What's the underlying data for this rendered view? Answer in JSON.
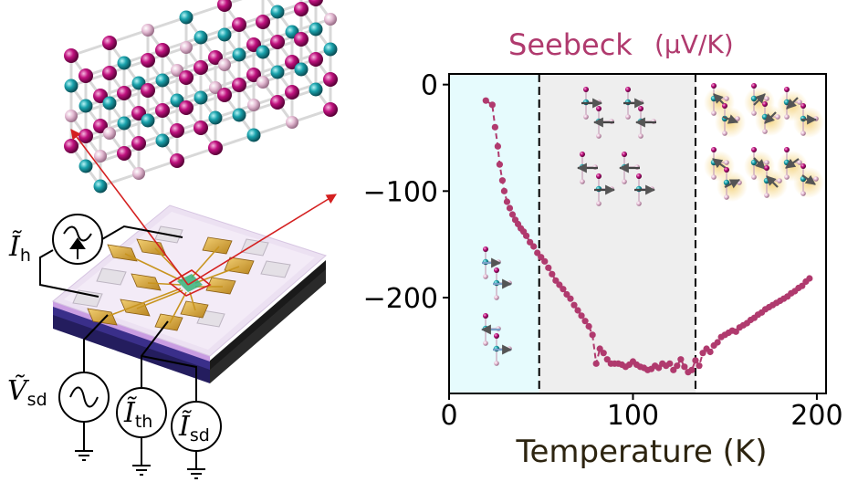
{
  "figure": {
    "lattice_illustration": "crystal-lattice",
    "device_illustration": "device-chip",
    "labels": {
      "heater_current_label": "Ĩ",
      "heater_current_sub": "h",
      "sd_voltage_label": "Ṽ",
      "sd_voltage_sub": "sd",
      "thermo_current_label": "Ĩ",
      "thermo_current_sub": "th",
      "sd_current_label": "Ĩ",
      "sd_current_sub": "sd"
    },
    "icons": [
      "ac-source-icon",
      "current-arrow-icon",
      "ground-icon",
      "spin-configuration-icon"
    ],
    "colors": {
      "data": "#b03a6e",
      "region_low": "#e6fbfd",
      "region_mid": "#eeeeee",
      "pink_atom": "#c0127f",
      "teal_atom": "#1aa3ad",
      "light_atom": "#e3b9d2",
      "gold_contact": "#d9a53b",
      "substrate_top": "#e7d8ef",
      "substrate_side": "#2b2467",
      "red_arrow": "#d42020"
    }
  },
  "chart_data": {
    "type": "scatter",
    "title": "Seebeck",
    "title_unit": "(μV/K)",
    "xlabel": "Temperature (K)",
    "ylabel": "",
    "xlim": [
      0,
      205
    ],
    "ylim": [
      -290,
      10
    ],
    "xticks": [
      0,
      100,
      200
    ],
    "yticks": [
      0,
      -100,
      -200
    ],
    "xtick_labels": [
      "0",
      "100",
      "200"
    ],
    "ytick_labels": [
      "0",
      "−100",
      "−200"
    ],
    "grid": false,
    "markers_joined_by_dashed_line": true,
    "vertical_dividers_K": [
      49,
      134
    ],
    "regions": [
      {
        "from": 0,
        "to": 49,
        "fill": "#e6fbfd"
      },
      {
        "from": 49,
        "to": 134,
        "fill": "#eeeeee"
      }
    ],
    "series": [
      {
        "color": "#b03a6e",
        "x": [
          20,
          23.5,
          25,
          26.5,
          27.5,
          29,
          30,
          31.5,
          33,
          34.5,
          36,
          37.5,
          39,
          40.5,
          42,
          44,
          46,
          48,
          50,
          52,
          54,
          56,
          58,
          60,
          62,
          64,
          66,
          68,
          70,
          72,
          74,
          76,
          78,
          80,
          82,
          84,
          86,
          88,
          90,
          92,
          94,
          96,
          98,
          100,
          102,
          104,
          106,
          108,
          110,
          112,
          114,
          116,
          118,
          120,
          122,
          124,
          126,
          128,
          130,
          132,
          134,
          136,
          138,
          140,
          142,
          144,
          146,
          148,
          150,
          152,
          154,
          156,
          158,
          160,
          162,
          164,
          166,
          168,
          170,
          172,
          174,
          176,
          178,
          180,
          182,
          184,
          186,
          188,
          190,
          192,
          194,
          196
        ],
        "y": [
          -15,
          -19,
          -40,
          -58,
          -75,
          -90,
          -100,
          -110,
          -116,
          -122,
          -127,
          -131,
          -135,
          -138,
          -142,
          -148,
          -152,
          -158,
          -162,
          -166,
          -172,
          -178,
          -184,
          -188,
          -192,
          -197,
          -201,
          -207,
          -212,
          -217,
          -222,
          -227,
          -235,
          -262,
          -248,
          -252,
          -258,
          -262,
          -262,
          -262,
          -263,
          -265,
          -263,
          -260,
          -263,
          -265,
          -266,
          -268,
          -267,
          -264,
          -266,
          -262,
          -264,
          -262,
          -268,
          -264,
          -258,
          -265,
          -270,
          -268,
          -259,
          -264,
          -252,
          -248,
          -251,
          -245,
          -242,
          -237,
          -235,
          -233,
          -231,
          -232,
          -228,
          -226,
          -224,
          -221,
          -219,
          -216,
          -214,
          -211,
          -209,
          -207,
          -205,
          -203,
          -201,
          -199,
          -196,
          -194,
          -191,
          -189,
          -185,
          -182
        ]
      }
    ]
  }
}
